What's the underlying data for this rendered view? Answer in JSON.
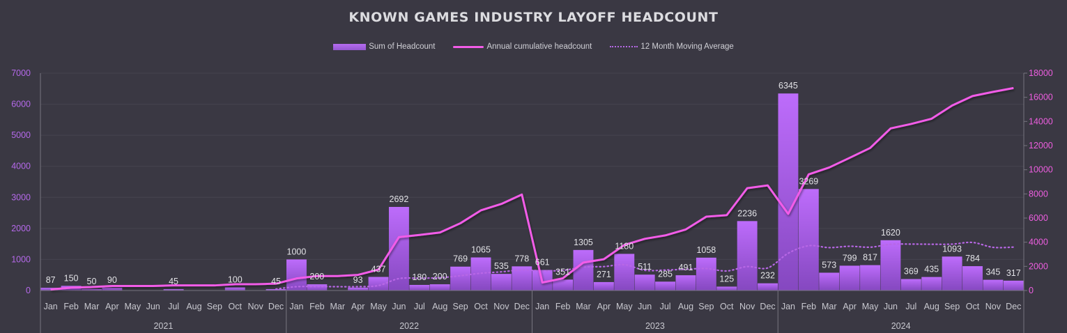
{
  "chart_data": {
    "type": "bar",
    "title": "KNOWN GAMES INDUSTRY LAYOFF HEADCOUNT",
    "xlabel": "",
    "ylabel": "",
    "legend_position": "top-center",
    "grid": true,
    "years": [
      "2021",
      "2022",
      "2023",
      "2024"
    ],
    "months": [
      "Jan",
      "Feb",
      "Mar",
      "Apr",
      "May",
      "Jun",
      "Jul",
      "Aug",
      "Sep",
      "Oct",
      "Nov",
      "Dec"
    ],
    "y_left": {
      "range": [
        0,
        7000
      ],
      "ticks": [
        "0",
        "1000",
        "2000",
        "3000",
        "4000",
        "5000",
        "6000",
        "7000"
      ],
      "color": "#b569ea"
    },
    "y_right": {
      "range": [
        0,
        18000
      ],
      "ticks": [
        "0",
        "2000",
        "4000",
        "6000",
        "8000",
        "10000",
        "12000",
        "14000",
        "16000",
        "18000"
      ],
      "color": "#ee5ee0"
    },
    "series": [
      {
        "name": "Sum of Headcount",
        "type": "bar",
        "axis": "left",
        "color_top": "#bd6cfb",
        "color_bottom": "#8548c0",
        "values": [
          87,
          150,
          50,
          90,
          0,
          0,
          45,
          0,
          0,
          100,
          0,
          45,
          1000,
          200,
          0,
          93,
          437,
          2692,
          180,
          200,
          769,
          1065,
          535,
          778,
          661,
          351,
          1305,
          271,
          1180,
          511,
          285,
          491,
          1058,
          125,
          2236,
          232,
          6345,
          3269,
          573,
          799,
          817,
          1620,
          369,
          435,
          1093,
          784,
          345,
          317
        ],
        "labels": [
          "87",
          "150",
          "50",
          "90",
          "",
          "",
          "45",
          "",
          "",
          "100",
          "",
          "45",
          "1000",
          "200",
          "",
          "93",
          "437",
          "2692",
          "180",
          "200",
          "769",
          "1065",
          "535",
          "778",
          "661",
          "351",
          "1305",
          "271",
          "1180",
          "511",
          "285",
          "491",
          "1058",
          "125",
          "2236",
          "232",
          "6345",
          "3269",
          "573",
          "799",
          "817",
          "1620",
          "369",
          "435",
          "1093",
          "784",
          "345",
          "317"
        ]
      },
      {
        "name": "Annual cumulative headcount",
        "type": "line",
        "axis": "right",
        "color": "#f25ce8",
        "values": [
          87,
          237,
          287,
          377,
          377,
          377,
          422,
          422,
          422,
          522,
          522,
          567,
          1000,
          1200,
          1200,
          1293,
          1730,
          4422,
          4602,
          4802,
          5571,
          6636,
          7171,
          7949,
          661,
          1012,
          2317,
          2588,
          3768,
          4279,
          4564,
          5055,
          6113,
          6238,
          8474,
          8706,
          6345,
          9614,
          10187,
          10986,
          11803,
          13423,
          13792,
          14227,
          15320,
          16104,
          16449,
          16766
        ]
      },
      {
        "name": "12 Month Moving Average",
        "type": "line-dotted",
        "axis": "left",
        "color": "#b867e6",
        "values": [
          null,
          null,
          null,
          null,
          null,
          null,
          null,
          null,
          null,
          null,
          null,
          47,
          123,
          128,
          123,
          124,
          160,
          384,
          396,
          412,
          476,
          557,
          601,
          662,
          634,
          647,
          756,
          770,
          832,
          651,
          659,
          684,
          708,
          629,
          771,
          726,
          1199,
          1442,
          1381,
          1425,
          1395,
          1488,
          1495,
          1490,
          1493,
          1548,
          1390,
          1397
        ]
      }
    ]
  }
}
